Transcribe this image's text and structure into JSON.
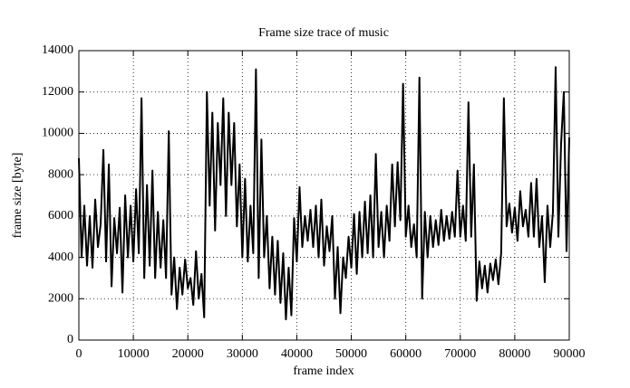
{
  "chart_data": {
    "type": "line",
    "title": "Frame size trace of music",
    "xlabel": "frame index",
    "ylabel": "frame size [byte]",
    "color": "#000000",
    "grid": true,
    "xlim": [
      0,
      90000
    ],
    "xticks": [
      0,
      10000,
      20000,
      30000,
      40000,
      50000,
      60000,
      70000,
      80000,
      90000
    ],
    "ylim": [
      0,
      14000
    ],
    "yticks": [
      0,
      2000,
      4000,
      6000,
      8000,
      10000,
      12000,
      14000
    ],
    "x": [
      0,
      500,
      1000,
      1500,
      2000,
      2500,
      3000,
      3500,
      4000,
      4500,
      5000,
      5500,
      6000,
      6500,
      7000,
      7500,
      8000,
      8500,
      9000,
      9500,
      10000,
      10500,
      11000,
      11500,
      12000,
      12500,
      13000,
      13500,
      14000,
      14500,
      15000,
      15500,
      16000,
      16500,
      17000,
      17500,
      18000,
      18500,
      19000,
      19500,
      20000,
      20500,
      21000,
      21500,
      22000,
      22500,
      23000,
      23500,
      24000,
      24500,
      25000,
      25500,
      26000,
      26500,
      27000,
      27500,
      28000,
      28500,
      29000,
      29500,
      30000,
      30500,
      31000,
      31500,
      32000,
      32500,
      33000,
      33500,
      34000,
      34500,
      35000,
      35500,
      36000,
      36500,
      37000,
      37500,
      38000,
      38500,
      39000,
      39500,
      40000,
      40500,
      41000,
      41500,
      42000,
      42500,
      43000,
      43500,
      44000,
      44500,
      45000,
      45500,
      46000,
      46500,
      47000,
      47500,
      48000,
      48500,
      49000,
      49500,
      50000,
      50500,
      51000,
      51500,
      52000,
      52500,
      53000,
      53500,
      54000,
      54500,
      55000,
      55500,
      56000,
      56500,
      57000,
      57500,
      58000,
      58500,
      59000,
      59500,
      60000,
      60500,
      61000,
      61500,
      62000,
      62500,
      63000,
      63500,
      64000,
      64500,
      65000,
      65500,
      66000,
      66500,
      67000,
      67500,
      68000,
      68500,
      69000,
      69500,
      70000,
      70500,
      71000,
      71500,
      72000,
      72500,
      73000,
      73500,
      74000,
      74500,
      75000,
      75500,
      76000,
      76500,
      77000,
      77500,
      78000,
      78500,
      79000,
      79500,
      80000,
      80500,
      81000,
      81500,
      82000,
      82500,
      83000,
      83500,
      84000,
      84500,
      85000,
      85500,
      86000,
      86500,
      87000,
      87500,
      88000,
      88500,
      89000,
      89500,
      90000
    ],
    "values": [
      8800,
      4000,
      6500,
      3600,
      6000,
      3500,
      6800,
      4500,
      5600,
      9200,
      3800,
      8500,
      2600,
      5900,
      4200,
      6400,
      2300,
      7000,
      4000,
      6500,
      3800,
      7300,
      4200,
      11700,
      3000,
      7500,
      3600,
      8200,
      3000,
      6200,
      3500,
      5800,
      3000,
      10100,
      2200,
      4000,
      1500,
      3500,
      2200,
      3900,
      2500,
      3000,
      1700,
      4300,
      2000,
      3200,
      1100,
      12000,
      6500,
      11000,
      5300,
      10500,
      7500,
      11700,
      6000,
      11000,
      7500,
      10500,
      5500,
      8500,
      4000,
      7800,
      3800,
      6500,
      4200,
      13100,
      3000,
      9700,
      4000,
      6000,
      2500,
      5000,
      2200,
      4800,
      1800,
      4200,
      1000,
      3500,
      1200,
      5900,
      3800,
      7400,
      4500,
      6000,
      4800,
      6300,
      4500,
      6500,
      4000,
      6800,
      3600,
      5500,
      4300,
      6000,
      2000,
      4500,
      1300,
      4000,
      3000,
      5000,
      3500,
      6100,
      3200,
      6200,
      4000,
      6700,
      4200,
      7000,
      4000,
      9000,
      4500,
      6200,
      4000,
      6500,
      4800,
      8500,
      5500,
      8600,
      5800,
      12400,
      5000,
      6500,
      4500,
      5600,
      4000,
      12700,
      2000,
      6200,
      4000,
      6000,
      4500,
      5800,
      4600,
      6300,
      4800,
      6000,
      4900,
      6200,
      5000,
      8200,
      5000,
      6500,
      4800,
      11500,
      5000,
      8500,
      1900,
      3800,
      2500,
      3600,
      2300,
      3700,
      2900,
      3900,
      2700,
      4200,
      11700,
      5500,
      6600,
      5200,
      6400,
      4800,
      7200,
      5500,
      6300,
      5000,
      7600,
      5000,
      7800,
      4500,
      6000,
      2800,
      6500,
      4500,
      6200,
      13200,
      5000,
      9500,
      12000,
      4300,
      9800
    ]
  }
}
